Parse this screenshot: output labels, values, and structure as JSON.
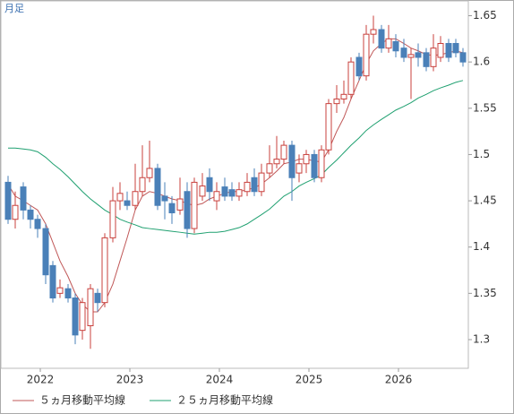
{
  "chart_data": {
    "type": "candlestick",
    "label": "月足",
    "x": [
      2021.64,
      2021.72,
      2021.81,
      2021.89,
      2021.97,
      2022.06,
      2022.14,
      2022.22,
      2022.31,
      2022.39,
      2022.47,
      2022.56,
      2022.64,
      2022.72,
      2022.81,
      2022.89,
      2022.97,
      2023.06,
      2023.14,
      2023.22,
      2023.31,
      2023.39,
      2023.47,
      2023.56,
      2023.64,
      2023.72,
      2023.81,
      2023.89,
      2023.97,
      2024.06,
      2024.14,
      2024.22,
      2024.31,
      2024.39,
      2024.47,
      2024.56,
      2024.64,
      2024.72,
      2024.81,
      2024.89,
      2024.97,
      2025.06,
      2025.14,
      2025.22,
      2025.31,
      2025.39,
      2025.47,
      2025.56,
      2025.64,
      2025.72,
      2025.81,
      2025.89,
      2025.97,
      2026.06,
      2026.14,
      2026.22,
      2026.31,
      2026.39,
      2026.47,
      2026.56,
      2026.64,
      2026.72
    ],
    "open": [
      1.47,
      1.43,
      1.465,
      1.44,
      1.43,
      1.42,
      1.38,
      1.35,
      1.355,
      1.345,
      1.31,
      1.315,
      1.35,
      1.34,
      1.41,
      1.45,
      1.45,
      1.445,
      1.46,
      1.475,
      1.485,
      1.455,
      1.447,
      1.44,
      1.46,
      1.42,
      1.455,
      1.475,
      1.45,
      1.465,
      1.462,
      1.455,
      1.46,
      1.475,
      1.46,
      1.48,
      1.49,
      1.495,
      1.51,
      1.48,
      1.49,
      1.5,
      1.475,
      1.505,
      1.555,
      1.56,
      1.565,
      1.605,
      1.585,
      1.63,
      1.635,
      1.615,
      1.622,
      1.615,
      1.605,
      1.61,
      1.61,
      1.595,
      1.605,
      1.62,
      1.62,
      1.61
    ],
    "high": [
      1.477,
      1.46,
      1.47,
      1.445,
      1.435,
      1.425,
      1.385,
      1.365,
      1.36,
      1.35,
      1.345,
      1.36,
      1.355,
      1.415,
      1.465,
      1.47,
      1.46,
      1.49,
      1.51,
      1.515,
      1.49,
      1.47,
      1.455,
      1.475,
      1.47,
      1.475,
      1.48,
      1.485,
      1.47,
      1.475,
      1.47,
      1.47,
      1.48,
      1.485,
      1.49,
      1.51,
      1.52,
      1.515,
      1.515,
      1.5,
      1.505,
      1.505,
      1.51,
      1.56,
      1.575,
      1.58,
      1.605,
      1.61,
      1.64,
      1.65,
      1.64,
      1.64,
      1.63,
      1.625,
      1.615,
      1.62,
      1.615,
      1.63,
      1.628,
      1.625,
      1.625,
      1.615
    ],
    "low": [
      1.425,
      1.42,
      1.43,
      1.42,
      1.41,
      1.36,
      1.34,
      1.345,
      1.34,
      1.295,
      1.3,
      1.29,
      1.33,
      1.335,
      1.405,
      1.44,
      1.44,
      1.44,
      1.455,
      1.47,
      1.44,
      1.43,
      1.425,
      1.435,
      1.41,
      1.415,
      1.45,
      1.45,
      1.44,
      1.45,
      1.45,
      1.45,
      1.455,
      1.455,
      1.455,
      1.475,
      1.485,
      1.49,
      1.45,
      1.47,
      1.48,
      1.47,
      1.47,
      1.5,
      1.545,
      1.555,
      1.56,
      1.58,
      1.58,
      1.62,
      1.61,
      1.61,
      1.605,
      1.6,
      1.56,
      1.595,
      1.59,
      1.59,
      1.6,
      1.6,
      1.605,
      1.595
    ],
    "close": [
      1.43,
      1.445,
      1.44,
      1.43,
      1.42,
      1.37,
      1.345,
      1.356,
      1.345,
      1.305,
      1.34,
      1.355,
      1.34,
      1.41,
      1.45,
      1.458,
      1.445,
      1.46,
      1.475,
      1.485,
      1.445,
      1.45,
      1.437,
      1.452,
      1.42,
      1.47,
      1.466,
      1.46,
      1.46,
      1.455,
      1.455,
      1.462,
      1.47,
      1.46,
      1.48,
      1.49,
      1.495,
      1.51,
      1.475,
      1.49,
      1.5,
      1.475,
      1.505,
      1.555,
      1.56,
      1.565,
      1.6,
      1.585,
      1.63,
      1.635,
      1.615,
      1.625,
      1.612,
      1.605,
      1.608,
      1.605,
      1.595,
      1.615,
      1.62,
      1.605,
      1.61,
      1.6
    ],
    "up_color": "#c8403c",
    "down_color": "#4a80b8",
    "series": [
      {
        "name": "５ヵ月移動平均線",
        "color": "#c05858",
        "values": [
          1.468,
          1.455,
          1.45,
          1.445,
          1.44,
          1.425,
          1.405,
          1.385,
          1.368,
          1.35,
          1.338,
          1.33,
          1.33,
          1.34,
          1.36,
          1.385,
          1.41,
          1.44,
          1.455,
          1.46,
          1.458,
          1.455,
          1.452,
          1.45,
          1.447,
          1.445,
          1.447,
          1.452,
          1.455,
          1.458,
          1.46,
          1.46,
          1.462,
          1.464,
          1.468,
          1.475,
          1.482,
          1.49,
          1.492,
          1.495,
          1.495,
          1.493,
          1.492,
          1.505,
          1.525,
          1.54,
          1.56,
          1.58,
          1.598,
          1.612,
          1.62,
          1.625,
          1.625,
          1.62,
          1.615,
          1.612,
          1.608,
          1.607,
          1.608,
          1.61,
          1.612,
          1.61
        ]
      },
      {
        "name": "２５ヵ月移動平均線",
        "color": "#1fa070",
        "values": [
          1.507,
          1.507,
          1.506,
          1.505,
          1.503,
          1.497,
          1.49,
          1.484,
          1.476,
          1.468,
          1.46,
          1.452,
          1.446,
          1.44,
          1.435,
          1.43,
          1.427,
          1.424,
          1.421,
          1.42,
          1.419,
          1.418,
          1.417,
          1.416,
          1.415,
          1.414,
          1.415,
          1.416,
          1.416,
          1.417,
          1.419,
          1.421,
          1.425,
          1.43,
          1.435,
          1.441,
          1.448,
          1.455,
          1.46,
          1.466,
          1.47,
          1.474,
          1.478,
          1.486,
          1.494,
          1.502,
          1.51,
          1.518,
          1.526,
          1.532,
          1.538,
          1.543,
          1.548,
          1.552,
          1.556,
          1.561,
          1.565,
          1.569,
          1.572,
          1.575,
          1.578,
          1.58
        ]
      }
    ],
    "xlim": [
      2021.56,
      2026.78
    ],
    "xticks": [
      2022,
      2023,
      2024,
      2025,
      2026
    ],
    "ylim": [
      1.269,
      1.666
    ],
    "yticks": [
      1.3,
      1.35,
      1.4,
      1.45,
      1.5,
      1.55,
      1.6,
      1.65
    ]
  }
}
